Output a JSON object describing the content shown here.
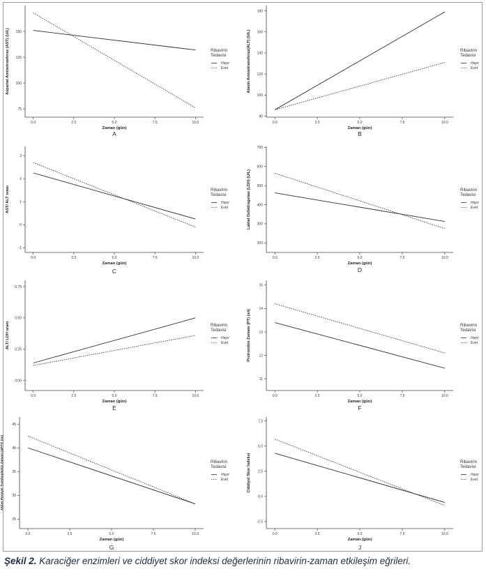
{
  "caption": {
    "bold": "Şekil 2.",
    "text": " Karaciğer enzimleri ve ciddiyet skor indeksi değerlerinin ribavirin-zaman etkileşim eğrileri."
  },
  "legend": {
    "title_line1": "Ribavirin",
    "title_line2": "Tedavisi",
    "entries": [
      {
        "label": "Hayır",
        "style": "solid"
      },
      {
        "label": "Evet",
        "style": "dotted"
      }
    ]
  },
  "colors": {
    "solid_line": "#2b2b2b",
    "dotted_line": "#3a3a3a",
    "axis": "#444444",
    "frame": "#9a9a9a"
  },
  "chart_data": [
    {
      "type": "line",
      "panel_label": "A",
      "xlabel": "Zaman (gün)",
      "ylabel": "Aspartat Aminotranferaz (AST) (U/L)",
      "xlim": [
        -0.5,
        10.5
      ],
      "ylim": [
        67,
        175
      ],
      "xticks": [
        0,
        2.5,
        5,
        7.5,
        10
      ],
      "xtick_labels": [
        "0.0",
        "2.5",
        "5.0",
        "7.5",
        "10.0"
      ],
      "yticks": [
        75,
        100,
        125,
        150
      ],
      "ytick_labels": [
        "75",
        "100",
        "125",
        "150"
      ],
      "series": [
        {
          "name": "Hayır",
          "style": "solid",
          "x": [
            0,
            10
          ],
          "y": [
            151,
            132
          ]
        },
        {
          "name": "Evet",
          "style": "dotted",
          "x": [
            0,
            10
          ],
          "y": [
            168,
            76
          ]
        }
      ]
    },
    {
      "type": "line",
      "panel_label": "B",
      "xlabel": "Zaman (gün)",
      "ylabel": "Alanin Aminotransferaz(ALT) (U/L)",
      "xlim": [
        -0.5,
        10.5
      ],
      "ylim": [
        79,
        185
      ],
      "xticks": [
        0,
        2.5,
        5,
        7.5,
        10
      ],
      "xtick_labels": [
        "0.0",
        "2.5",
        "5.0",
        "7.5",
        "10.0"
      ],
      "yticks": [
        80,
        100,
        120,
        140,
        160,
        180
      ],
      "ytick_labels": [
        "80",
        "100",
        "120",
        "140",
        "160",
        "180"
      ],
      "series": [
        {
          "name": "Hayır",
          "style": "solid",
          "x": [
            0,
            10
          ],
          "y": [
            86,
            179
          ]
        },
        {
          "name": "Evet",
          "style": "dotted",
          "x": [
            0,
            10
          ],
          "y": [
            86,
            131
          ]
        }
      ]
    },
    {
      "type": "line",
      "panel_label": "C",
      "xlabel": "Zaman (gün)",
      "ylabel": "AST/ ALT oranı",
      "xlim": [
        -0.5,
        10.5
      ],
      "ylim": [
        -1.2,
        3.4
      ],
      "xticks": [
        0,
        2.5,
        5,
        7.5,
        10
      ],
      "xtick_labels": [
        "0.0",
        "2.5",
        "5.0",
        "7.5",
        "10.0"
      ],
      "yticks": [
        -1,
        0,
        1,
        2,
        3
      ],
      "ytick_labels": [
        "-1",
        "0",
        "1",
        "2",
        "3"
      ],
      "series": [
        {
          "name": "Hayır",
          "style": "solid",
          "x": [
            0,
            10
          ],
          "y": [
            2.25,
            0.25
          ]
        },
        {
          "name": "Evet",
          "style": "dotted",
          "x": [
            0,
            10
          ],
          "y": [
            2.7,
            -0.1
          ]
        }
      ]
    },
    {
      "type": "line",
      "panel_label": "D",
      "xlabel": "Zaman (gün)",
      "ylabel": "Laktat Dehidrogenaz (LDH) (U/L)",
      "xlim": [
        -0.5,
        10.5
      ],
      "ylim": [
        150,
        705
      ],
      "xticks": [
        0,
        2.5,
        5,
        7.5,
        10
      ],
      "xtick_labels": [
        "0.0",
        "2.5",
        "5.0",
        "7.5",
        "10.0"
      ],
      "yticks": [
        200,
        300,
        400,
        500,
        600,
        700
      ],
      "ytick_labels": [
        "200",
        "300",
        "400",
        "500",
        "600",
        "700"
      ],
      "series": [
        {
          "name": "Hayır",
          "style": "solid",
          "x": [
            0,
            10
          ],
          "y": [
            462,
            312
          ]
        },
        {
          "name": "Evet",
          "style": "dotted",
          "x": [
            0,
            10
          ],
          "y": [
            565,
            275
          ]
        }
      ]
    },
    {
      "type": "line",
      "panel_label": "E",
      "xlabel": "Zaman (gün)",
      "ylabel": "ALT/ LDH oranı",
      "xlim": [
        -0.5,
        10.5
      ],
      "ylim": [
        -0.08,
        0.8
      ],
      "xticks": [
        0,
        2.5,
        5,
        7.5,
        10
      ],
      "xtick_labels": [
        "0.0",
        "2.5",
        "5.0",
        "7.5",
        "10.0"
      ],
      "yticks": [
        0,
        0.25,
        0.5,
        0.75
      ],
      "ytick_labels": [
        "0.00",
        "0.25",
        "0.50",
        "0.75"
      ],
      "series": [
        {
          "name": "Hayır",
          "style": "solid",
          "x": [
            0,
            10
          ],
          "y": [
            0.14,
            0.5
          ]
        },
        {
          "name": "Evet",
          "style": "dotted",
          "x": [
            0,
            10
          ],
          "y": [
            0.12,
            0.36
          ]
        }
      ]
    },
    {
      "type": "line",
      "panel_label": "F",
      "xlabel": "Zaman (gün)",
      "ylabel": "Protrombin Zamanı (PT) (sn)",
      "xlim": [
        -0.5,
        10.5
      ],
      "ylim": [
        10.5,
        15.2
      ],
      "xticks": [
        0,
        2.5,
        5,
        7.5,
        10
      ],
      "xtick_labels": [
        "0.0",
        "2.5",
        "5.0",
        "7.5",
        "10.0"
      ],
      "yticks": [
        11,
        12,
        13,
        14,
        15
      ],
      "ytick_labels": [
        "11",
        "12",
        "13",
        "14",
        "15"
      ],
      "series": [
        {
          "name": "Hayır",
          "style": "solid",
          "x": [
            0,
            10
          ],
          "y": [
            13.4,
            11.45
          ]
        },
        {
          "name": "Evet",
          "style": "dotted",
          "x": [
            0,
            10
          ],
          "y": [
            14.2,
            12.1
          ]
        }
      ]
    },
    {
      "type": "line",
      "panel_label": "G",
      "xlabel": "Zaman (gün)",
      "ylabel": "Aktive Parsiyel Tromboplastin Zamanı (aPTT) (sn)",
      "xlim": [
        -0.5,
        10.5
      ],
      "ylim": [
        23,
        46.5
      ],
      "xticks": [
        0,
        2.5,
        5,
        7.5,
        10
      ],
      "xtick_labels": [
        "0.0",
        "2.5",
        "5.0",
        "7.5",
        "10.0"
      ],
      "yticks": [
        25,
        30,
        35,
        40,
        45
      ],
      "ytick_labels": [
        "25",
        "30",
        "35",
        "40",
        "45"
      ],
      "series": [
        {
          "name": "Hayır",
          "style": "solid",
          "x": [
            0,
            10
          ],
          "y": [
            40,
            28.2
          ]
        },
        {
          "name": "Evet",
          "style": "dotted",
          "x": [
            0,
            10
          ],
          "y": [
            42.5,
            28.2
          ]
        }
      ]
    },
    {
      "type": "line",
      "panel_label": "J",
      "xlabel": "Zaman (gün)",
      "ylabel": "Ciddiyet Skor İndeksi",
      "xlim": [
        -0.5,
        10.5
      ],
      "ylim": [
        -3.2,
        7.9
      ],
      "xticks": [
        0,
        2.5,
        5,
        7.5,
        10
      ],
      "xtick_labels": [
        "0.0",
        "2.5",
        "5.0",
        "7.5",
        "10.0"
      ],
      "yticks": [
        -2.5,
        0,
        2.5,
        5,
        7.5
      ],
      "ytick_labels": [
        "-2.5",
        "0.0",
        "2.5",
        "5.0",
        "7.5"
      ],
      "series": [
        {
          "name": "Hayır",
          "style": "solid",
          "x": [
            0,
            10
          ],
          "y": [
            4.3,
            -0.6
          ]
        },
        {
          "name": "Evet",
          "style": "dotted",
          "x": [
            0,
            10
          ],
          "y": [
            5.7,
            -0.9
          ]
        }
      ]
    }
  ]
}
